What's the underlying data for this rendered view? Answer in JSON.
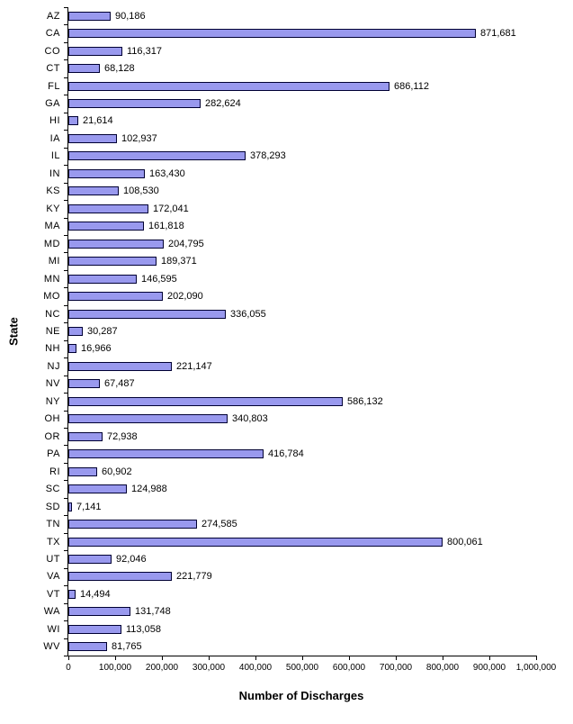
{
  "page": {
    "background": "#ffffff"
  },
  "chart_data": {
    "type": "bar",
    "orientation": "horizontal",
    "title": "",
    "xlabel": "Number of Discharges",
    "ylabel": "State",
    "xlim": [
      0,
      1000000
    ],
    "x_ticks": [
      0,
      100000,
      200000,
      300000,
      400000,
      500000,
      600000,
      700000,
      800000,
      900000,
      1000000
    ],
    "grid": false,
    "legend": false,
    "bar_fill": "#9999ee",
    "bar_border": "#000033",
    "axis_color": "#000000",
    "data_labels": true,
    "categories": [
      "AZ",
      "CA",
      "CO",
      "CT",
      "FL",
      "GA",
      "HI",
      "IA",
      "IL",
      "IN",
      "KS",
      "KY",
      "MA",
      "MD",
      "MI",
      "MN",
      "MO",
      "NC",
      "NE",
      "NH",
      "NJ",
      "NV",
      "NY",
      "OH",
      "OR",
      "PA",
      "RI",
      "SC",
      "SD",
      "TN",
      "TX",
      "UT",
      "VA",
      "VT",
      "WA",
      "WI",
      "WV"
    ],
    "values": [
      90186,
      871681,
      116317,
      68128,
      686112,
      282624,
      21614,
      102937,
      378293,
      163430,
      108530,
      172041,
      161818,
      204795,
      189371,
      146595,
      202090,
      336055,
      30287,
      16966,
      221147,
      67487,
      586132,
      340803,
      72938,
      416784,
      60902,
      124988,
      7141,
      274585,
      800061,
      92046,
      221779,
      14494,
      131748,
      113058,
      81765
    ]
  }
}
